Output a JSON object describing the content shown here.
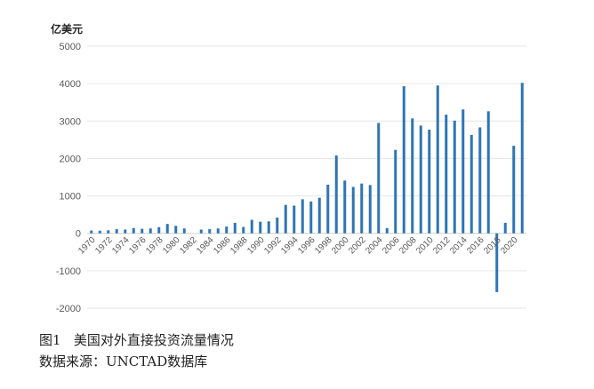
{
  "chart_data": {
    "type": "bar",
    "ylabel": "亿美元",
    "ylim": [
      -2000,
      5000
    ],
    "yticks": [
      -2000,
      -1000,
      0,
      1000,
      2000,
      3000,
      4000,
      5000
    ],
    "grid": true,
    "color": "#2E75B6",
    "categories": [
      "1970",
      "1971",
      "1972",
      "1973",
      "1974",
      "1975",
      "1976",
      "1977",
      "1978",
      "1979",
      "1980",
      "1981",
      "1982",
      "1983",
      "1984",
      "1985",
      "1986",
      "1987",
      "1988",
      "1989",
      "1990",
      "1991",
      "1992",
      "1993",
      "1994",
      "1995",
      "1996",
      "1997",
      "1998",
      "1999",
      "2000",
      "2001",
      "2002",
      "2003",
      "2004",
      "2005",
      "2006",
      "2007",
      "2008",
      "2009",
      "2010",
      "2011",
      "2012",
      "2013",
      "2014",
      "2015",
      "2016",
      "2017",
      "2018",
      "2019",
      "2020",
      "2021"
    ],
    "xtick_labels": [
      "1970",
      "1972",
      "1974",
      "1976",
      "1978",
      "1980",
      "1982",
      "1984",
      "1986",
      "1988",
      "1990",
      "1992",
      "1994",
      "1996",
      "1998",
      "2000",
      "2002",
      "2004",
      "2006",
      "2008",
      "2010",
      "2012",
      "2014",
      "2016",
      "2018",
      "2020"
    ],
    "values": [
      75,
      70,
      80,
      110,
      100,
      140,
      120,
      130,
      165,
      250,
      200,
      130,
      0,
      100,
      110,
      130,
      180,
      280,
      170,
      360,
      310,
      320,
      420,
      760,
      740,
      910,
      850,
      950,
      1300,
      2080,
      1410,
      1240,
      1330,
      1290,
      2950,
      140,
      2230,
      3930,
      3070,
      2880,
      2770,
      3950,
      3170,
      3010,
      3310,
      2630,
      2830,
      3260,
      -1570,
      280,
      2340,
      4020
    ]
  },
  "caption": {
    "title": "图1   美国对外直接投资流量情况",
    "source": "数据来源：UNCTAD数据库"
  }
}
